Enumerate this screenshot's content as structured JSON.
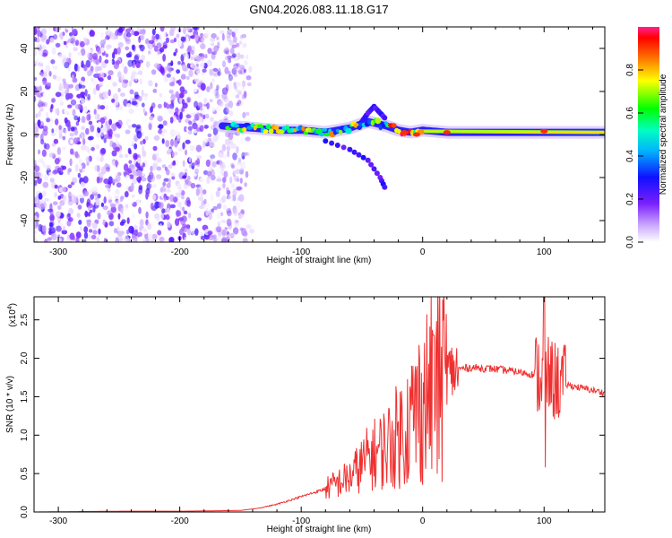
{
  "title": "GN04.2026.083.11.18.G17",
  "chart_data": [
    {
      "type": "heatmap",
      "name": "spectrogram",
      "title": "GN04.2026.083.11.18.G17",
      "xlabel": "Height of straight line (km)",
      "ylabel": "Frequency (Hz)",
      "xlim": [
        -320,
        150
      ],
      "ylim": [
        -50,
        50
      ],
      "xticks": [
        -300,
        -200,
        -100,
        0,
        100
      ],
      "yticks": [
        -40,
        -20,
        0,
        20,
        40
      ],
      "xtick_labels": [
        "-300",
        "-200",
        "-100",
        "0",
        "100"
      ],
      "ytick_labels": [
        "-40",
        "-20",
        "0",
        "20",
        "40"
      ],
      "colorbar": {
        "label": "Normalized spectral amplitude",
        "ticks": [
          0.0,
          0.2,
          0.4,
          0.6,
          0.8
        ],
        "tick_labels": [
          "0.0",
          "0.2",
          "0.4",
          "0.6",
          "0.8"
        ],
        "range": [
          0,
          1
        ]
      },
      "features": [
        {
          "name": "noise region",
          "x_range": [
            -320,
            -150
          ],
          "y_range": [
            -50,
            50
          ],
          "amplitude": 0.15
        },
        {
          "name": "main trace",
          "points": [
            [
              -165,
              4
            ],
            [
              -140,
              3
            ],
            [
              -120,
              2
            ],
            [
              -100,
              2
            ],
            [
              -80,
              1
            ],
            [
              -60,
              3
            ],
            [
              -45,
              6
            ],
            [
              -30,
              4
            ],
            [
              -20,
              2
            ],
            [
              -10,
              1
            ],
            [
              0,
              2
            ],
            [
              20,
              1
            ],
            [
              50,
              1
            ],
            [
              100,
              1
            ],
            [
              150,
              1
            ]
          ]
        },
        {
          "name": "lower branch",
          "points": [
            [
              -80,
              -3
            ],
            [
              -60,
              -7
            ],
            [
              -45,
              -12
            ],
            [
              -35,
              -20
            ],
            [
              -30,
              -26
            ]
          ]
        },
        {
          "name": "upper branch",
          "points": [
            [
              -50,
              6
            ],
            [
              -45,
              10
            ],
            [
              -40,
              13
            ],
            [
              -35,
              10
            ],
            [
              -30,
              7
            ]
          ]
        }
      ]
    },
    {
      "type": "line",
      "name": "snr",
      "xlabel": "Height of straight line (km)",
      "ylabel": "SNR (10 * v/v)",
      "scale_label": "(x10",
      "scale_exponent": "4",
      "xlim": [
        -320,
        150
      ],
      "ylim": [
        0,
        2.8
      ],
      "xticks": [
        -300,
        -200,
        -100,
        0,
        100
      ],
      "yticks": [
        0.0,
        0.5,
        1.0,
        1.5,
        2.0,
        2.5
      ],
      "xtick_labels": [
        "-300",
        "-200",
        "-100",
        "0",
        "100"
      ],
      "ytick_labels": [
        "0.0",
        "0.5",
        "1.0",
        "1.5",
        "2.0",
        "2.5"
      ],
      "color": "#f03030",
      "series": [
        {
          "name": "SNR",
          "x": [
            -320,
            -250,
            -200,
            -150,
            -135,
            -120,
            -100,
            -80,
            -60,
            -45,
            -30,
            -20,
            -10,
            0,
            10,
            20,
            30,
            40,
            60,
            80,
            95,
            100,
            105,
            110,
            120,
            150
          ],
          "y": [
            0.0,
            0.01,
            0.01,
            0.02,
            0.05,
            0.1,
            0.2,
            0.3,
            0.45,
            0.7,
            0.85,
            1.0,
            1.2,
            1.45,
            1.65,
            1.8,
            1.86,
            1.88,
            1.86,
            1.82,
            1.78,
            1.76,
            1.72,
            1.7,
            1.65,
            1.55
          ]
        }
      ],
      "annotations": [
        {
          "x": 100,
          "y": 2.8,
          "note": "spike"
        },
        {
          "x": 101,
          "y": 0.58,
          "note": "dip"
        },
        {
          "x": 9,
          "y": 2.3,
          "note": "spike"
        }
      ]
    }
  ]
}
